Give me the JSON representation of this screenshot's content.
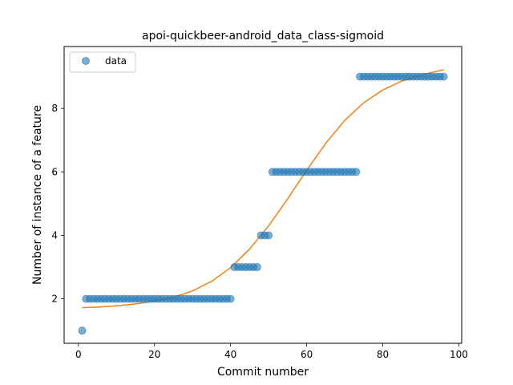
{
  "chart_data": {
    "type": "scatter",
    "title": "apoi-quickbeer-android_data_class-sigmoid",
    "xlabel": "Commit number",
    "ylabel": "Number of instance of a feature",
    "xlim": [
      -3.75,
      100.75
    ],
    "ylim": [
      0.6,
      9.95
    ],
    "xticks": [
      0,
      20,
      40,
      60,
      80,
      100
    ],
    "yticks": [
      2,
      4,
      6,
      8
    ],
    "grid": false,
    "legend_position": "top-left",
    "series": [
      {
        "name": "data",
        "kind": "scatter",
        "color": "#1f77b4",
        "points": [
          [
            1,
            1
          ],
          [
            2,
            2
          ],
          [
            3,
            2
          ],
          [
            4,
            2
          ],
          [
            5,
            2
          ],
          [
            6,
            2
          ],
          [
            7,
            2
          ],
          [
            8,
            2
          ],
          [
            9,
            2
          ],
          [
            10,
            2
          ],
          [
            11,
            2
          ],
          [
            12,
            2
          ],
          [
            13,
            2
          ],
          [
            14,
            2
          ],
          [
            15,
            2
          ],
          [
            16,
            2
          ],
          [
            17,
            2
          ],
          [
            18,
            2
          ],
          [
            19,
            2
          ],
          [
            20,
            2
          ],
          [
            21,
            2
          ],
          [
            22,
            2
          ],
          [
            23,
            2
          ],
          [
            24,
            2
          ],
          [
            25,
            2
          ],
          [
            26,
            2
          ],
          [
            27,
            2
          ],
          [
            28,
            2
          ],
          [
            29,
            2
          ],
          [
            30,
            2
          ],
          [
            31,
            2
          ],
          [
            32,
            2
          ],
          [
            33,
            2
          ],
          [
            34,
            2
          ],
          [
            35,
            2
          ],
          [
            36,
            2
          ],
          [
            37,
            2
          ],
          [
            38,
            2
          ],
          [
            39,
            2
          ],
          [
            40,
            2
          ],
          [
            41,
            3
          ],
          [
            42,
            3
          ],
          [
            43,
            3
          ],
          [
            44,
            3
          ],
          [
            45,
            3
          ],
          [
            46,
            3
          ],
          [
            47,
            3
          ],
          [
            48,
            4
          ],
          [
            49,
            4
          ],
          [
            50,
            4
          ],
          [
            51,
            6
          ],
          [
            52,
            6
          ],
          [
            53,
            6
          ],
          [
            54,
            6
          ],
          [
            55,
            6
          ],
          [
            56,
            6
          ],
          [
            57,
            6
          ],
          [
            58,
            6
          ],
          [
            59,
            6
          ],
          [
            60,
            6
          ],
          [
            61,
            6
          ],
          [
            62,
            6
          ],
          [
            63,
            6
          ],
          [
            64,
            6
          ],
          [
            65,
            6
          ],
          [
            66,
            6
          ],
          [
            67,
            6
          ],
          [
            68,
            6
          ],
          [
            69,
            6
          ],
          [
            70,
            6
          ],
          [
            71,
            6
          ],
          [
            72,
            6
          ],
          [
            73,
            6
          ],
          [
            74,
            9
          ],
          [
            75,
            9
          ],
          [
            76,
            9
          ],
          [
            77,
            9
          ],
          [
            78,
            9
          ],
          [
            79,
            9
          ],
          [
            80,
            9
          ],
          [
            81,
            9
          ],
          [
            82,
            9
          ],
          [
            83,
            9
          ],
          [
            84,
            9
          ],
          [
            85,
            9
          ],
          [
            86,
            9
          ],
          [
            87,
            9
          ],
          [
            88,
            9
          ],
          [
            89,
            9
          ],
          [
            90,
            9
          ],
          [
            91,
            9
          ],
          [
            92,
            9
          ],
          [
            93,
            9
          ],
          [
            94,
            9
          ],
          [
            95,
            9
          ],
          [
            96,
            9
          ]
        ]
      },
      {
        "kind": "line",
        "color": "#ff7f0e",
        "points": [
          [
            1,
            1.72
          ],
          [
            5,
            1.74
          ],
          [
            10,
            1.78
          ],
          [
            15,
            1.84
          ],
          [
            20,
            1.93
          ],
          [
            25,
            2.05
          ],
          [
            30,
            2.25
          ],
          [
            35,
            2.55
          ],
          [
            40,
            2.98
          ],
          [
            45,
            3.57
          ],
          [
            50,
            4.3
          ],
          [
            55,
            5.15
          ],
          [
            60,
            6.05
          ],
          [
            65,
            6.9
          ],
          [
            70,
            7.62
          ],
          [
            75,
            8.18
          ],
          [
            80,
            8.58
          ],
          [
            85,
            8.86
          ],
          [
            90,
            9.05
          ],
          [
            96,
            9.22
          ]
        ]
      }
    ]
  }
}
